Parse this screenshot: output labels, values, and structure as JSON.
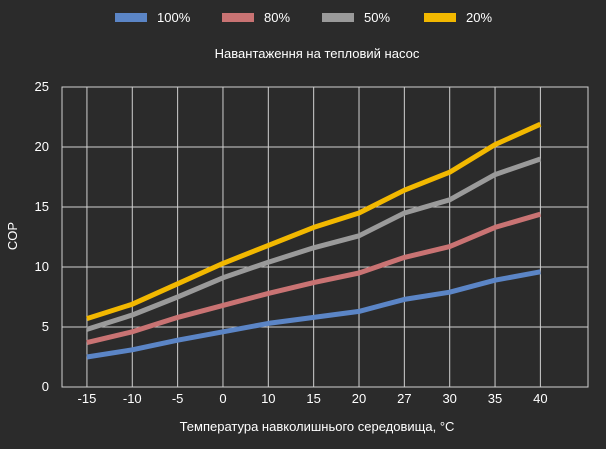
{
  "chart_data": {
    "type": "line",
    "title": "Навантаження на тепловий насос",
    "xlabel": "Температура навколишнього середовища, °C",
    "ylabel": "COP",
    "categories": [
      "-15",
      "-10",
      "-5",
      "0",
      "10",
      "15",
      "20",
      "27",
      "30",
      "35",
      "40"
    ],
    "ylim": [
      0,
      25
    ],
    "yticks": [
      0,
      5,
      10,
      15,
      20,
      25
    ],
    "grid": true,
    "legend_position": "top",
    "series": [
      {
        "name": "100%",
        "color": "#5b85c6",
        "values": [
          2.5,
          3.1,
          3.9,
          4.6,
          5.3,
          5.8,
          6.3,
          7.3,
          7.9,
          8.9,
          9.6
        ]
      },
      {
        "name": "80%",
        "color": "#c97373",
        "values": [
          3.7,
          4.6,
          5.8,
          6.8,
          7.8,
          8.7,
          9.5,
          10.8,
          11.7,
          13.3,
          14.4
        ]
      },
      {
        "name": "50%",
        "color": "#9a9a9a",
        "values": [
          4.8,
          6.0,
          7.5,
          9.1,
          10.4,
          11.6,
          12.6,
          14.5,
          15.6,
          17.7,
          19.0
        ]
      },
      {
        "name": "20%",
        "color": "#f2b800",
        "values": [
          5.7,
          6.9,
          8.6,
          10.3,
          11.8,
          13.3,
          14.5,
          16.4,
          17.9,
          20.2,
          21.9
        ]
      }
    ]
  }
}
